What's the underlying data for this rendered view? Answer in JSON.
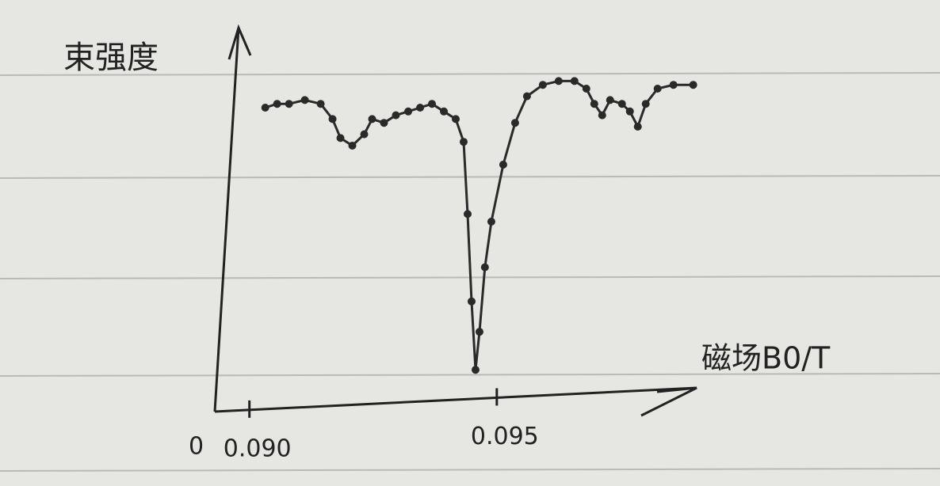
{
  "chart_data": {
    "type": "line",
    "y_label": "束强度",
    "x_label": "磁场B0/T",
    "origin_label": "0",
    "xlim": [
      0.0893,
      0.0992
    ],
    "xticks": [
      {
        "value": 0.09,
        "label": "0.090"
      },
      0.095
    ],
    "ylim": [
      0,
      100
    ],
    "series": [
      {
        "color": "#2a2a2a",
        "x": [
          0.09032,
          0.09056,
          0.0908,
          0.09112,
          0.09144,
          0.09168,
          0.09184,
          0.09208,
          0.09232,
          0.09248,
          0.09272,
          0.09296,
          0.09321,
          0.09345,
          0.09369,
          0.09393,
          0.09417,
          0.09433,
          0.09441,
          0.09449,
          0.09457,
          0.09465,
          0.09476,
          0.09489,
          0.09513,
          0.09537,
          0.09561,
          0.09593,
          0.09625,
          0.09657,
          0.09681,
          0.09697,
          0.09713,
          0.09729,
          0.09753,
          0.09769,
          0.09785,
          0.09801,
          0.09825,
          0.09857,
          0.09897
        ],
        "values": [
          80,
          81,
          81,
          82,
          81,
          77,
          72,
          70,
          73,
          77,
          76,
          78,
          79,
          80,
          81,
          79,
          77,
          71,
          52,
          29,
          11,
          21,
          38,
          50,
          65,
          76,
          83,
          86,
          87,
          87,
          85,
          81,
          78,
          82,
          81,
          79,
          75,
          81,
          85,
          86,
          86
        ]
      }
    ]
  }
}
